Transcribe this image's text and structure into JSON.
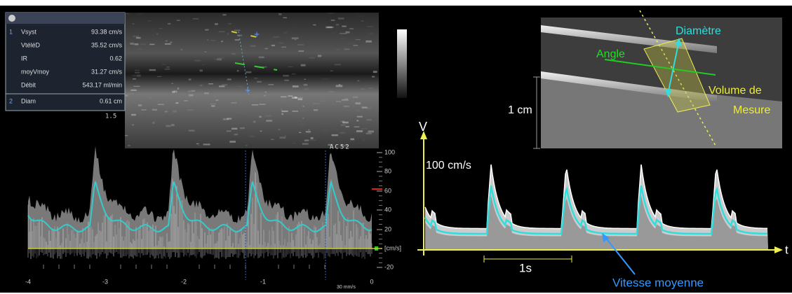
{
  "panel": {
    "rows": [
      {
        "index": "1",
        "label": "Vsyst",
        "value": "93.38 cm/s"
      },
      {
        "label": "VtéléD",
        "value": "35.52 cm/s"
      },
      {
        "label": "IR",
        "value": "0.62"
      },
      {
        "label": "moyVmoy",
        "value": "31.27 cm/s"
      },
      {
        "label": "Débit",
        "value": "543.17 ml/min"
      },
      {
        "index": "2",
        "label": "Diam",
        "value": "0.61 cm"
      }
    ]
  },
  "doppler": {
    "scale_label": "AC52",
    "depth": "1.5",
    "velocity_ticks": [
      "100",
      "80",
      "60",
      "40",
      "20",
      "[cm/s]",
      "-20"
    ],
    "time_ticks": [
      "-4",
      "-3",
      "-2",
      "-1",
      "0"
    ],
    "sweep": "30 mm/s"
  },
  "schematic": {
    "diameter": "Diamètre",
    "angle": "Angle",
    "volume_line1": "Volume de",
    "volume_line2": "Mesure",
    "scale": "1 cm",
    "v_axis": "V",
    "v_ref": "100 cm/s",
    "t_axis": "t",
    "time_scale": "1s",
    "mean_velocity": "Vitesse moyenne"
  }
}
